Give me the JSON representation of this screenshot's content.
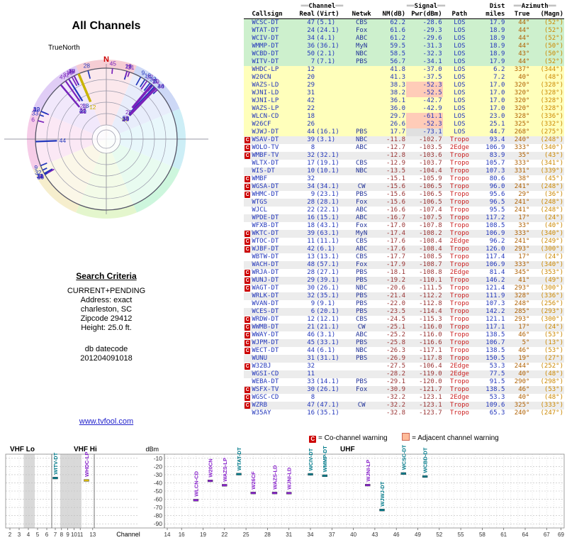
{
  "left": {
    "title": "All Channels",
    "plot_caption": "TrueNorth",
    "north_label": "N",
    "criteria_title": "Search Criteria",
    "criteria_lines": [
      "CURRENT+PENDING",
      "Address: exact",
      "charleston, SC",
      "Zipcode 29412",
      "Height: 25.0 ft."
    ],
    "datecode_lines": [
      "db datecode",
      "201204091018"
    ],
    "link": "www.tvfool.com"
  },
  "table": {
    "deco": "══",
    "groups": {
      "channel": "Channel",
      "signal": "Signal",
      "dist": "Dist",
      "azimuth": "Azimuth"
    },
    "cols": {
      "callsign": "Callsign",
      "real": "Real",
      "virt": "(Virt)",
      "netwk": "Netwk",
      "nm": "NM(dB)",
      "pwr": "Pwr(dBm)",
      "path": "Path",
      "miles": "miles",
      "true": "True",
      "magn": "(Magn)"
    },
    "row_fields": [
      "callsign",
      "real",
      "virt",
      "netwk",
      "nm_db",
      "pwr_dbm",
      "path",
      "miles",
      "true_az",
      "magn_az",
      "class",
      "warning"
    ],
    "rows": [
      [
        "WCSC-DT",
        "47",
        "(5.1)",
        "CBS",
        "62.2",
        "-28.6",
        "LOS",
        "17.9",
        "44°",
        "(52°)",
        "g",
        ""
      ],
      [
        "WTAT-DT",
        "24",
        "(24.1)",
        "Fox",
        "61.6",
        "-29.3",
        "LOS",
        "18.9",
        "44°",
        "(52°)",
        "g",
        ""
      ],
      [
        "WCIV-DT",
        "34",
        "(4.1)",
        "ABC",
        "61.2",
        "-29.6",
        "LOS",
        "18.9",
        "44°",
        "(52°)",
        "g",
        ""
      ],
      [
        "WMMP-DT",
        "36",
        "(36.1)",
        "MyN",
        "59.5",
        "-31.3",
        "LOS",
        "18.9",
        "44°",
        "(50°)",
        "g",
        ""
      ],
      [
        "WCBD-DT",
        "50",
        "(2.1)",
        "NBC",
        "58.5",
        "-32.3",
        "LOS",
        "18.9",
        "43°",
        "(50°)",
        "g",
        ""
      ],
      [
        "WITV-DT",
        "7",
        "(7.1)",
        "PBS",
        "56.7",
        "-34.1",
        "LOS",
        "17.9",
        "44°",
        "(52°)",
        "g",
        ""
      ],
      [
        "WHDC-LP",
        "12",
        "",
        "",
        "41.8",
        "-37.0",
        "LOS",
        "6.2",
        "337°",
        "(344°)",
        "y",
        ""
      ],
      [
        "W20CN",
        "20",
        "",
        "",
        "41.3",
        "-37.5",
        "LOS",
        "7.2",
        "40°",
        "(48°)",
        "y",
        ""
      ],
      [
        "WAZS-LD",
        "29",
        "",
        "",
        "38.3",
        "-52.3",
        "LOS",
        "17.0",
        "320°",
        "(328°)",
        "y",
        ""
      ],
      [
        "WJNI-LD",
        "31",
        "",
        "",
        "38.2",
        "-52.5",
        "LOS",
        "17.0",
        "320°",
        "(328°)",
        "y",
        ""
      ],
      [
        "WJNI-LP",
        "42",
        "",
        "",
        "36.1",
        "-42.7",
        "LOS",
        "17.0",
        "320°",
        "(328°)",
        "y",
        ""
      ],
      [
        "WAZS-LP",
        "22",
        "",
        "",
        "36.0",
        "-42.9",
        "LOS",
        "17.0",
        "320°",
        "(328°)",
        "y",
        ""
      ],
      [
        "WLCN-CD",
        "18",
        "",
        "",
        "29.7",
        "-61.1",
        "LOS",
        "23.0",
        "328°",
        "(336°)",
        "y",
        ""
      ],
      [
        "W26CF",
        "26",
        "",
        "",
        "26.6",
        "-52.3",
        "LOS",
        "25.1",
        "325°",
        "(332°)",
        "y",
        ""
      ],
      [
        "WJWJ-DT",
        "44",
        "(16.1)",
        "PBS",
        "17.7",
        "-73.1",
        "LOS",
        "44.7",
        "268°",
        "(275°)",
        "y",
        ""
      ],
      [
        "WSAV-DT",
        "39",
        "(3.1)",
        "NBC",
        "-11.8",
        "-102.7",
        "Tropo",
        "93.4",
        "240°",
        "(248°)",
        "",
        "C"
      ],
      [
        "WOLO-TV",
        "8",
        "",
        "ABC",
        "-12.7",
        "-103.5",
        "2Edge",
        "106.9",
        "333°",
        "(340°)",
        "",
        "C"
      ],
      [
        "WMBF-TV",
        "32",
        "(32.1)",
        "",
        "-12.8",
        "-103.6",
        "Tropo",
        "83.9",
        "35°",
        "(43°)",
        "",
        "C"
      ],
      [
        "WLTX-DT",
        "17",
        "(19.1)",
        "CBS",
        "-12.9",
        "-103.7",
        "Tropo",
        "105.7",
        "333°",
        "(341°)",
        "",
        ""
      ],
      [
        "WIS-DT",
        "10",
        "(10.1)",
        "NBC",
        "-13.5",
        "-104.4",
        "Tropo",
        "107.3",
        "331°",
        "(339°)",
        "",
        ""
      ],
      [
        "WMBF",
        "32",
        "",
        "",
        "-15.1",
        "-105.9",
        "Tropo",
        "80.6",
        "38°",
        "(45°)",
        "",
        "C"
      ],
      [
        "WGSA-DT",
        "34",
        "(34.1)",
        "CW",
        "-15.6",
        "-106.5",
        "Tropo",
        "96.0",
        "241°",
        "(248°)",
        "",
        "C"
      ],
      [
        "WHMC-DT",
        "9",
        "(23.1)",
        "PBS",
        "-15.6",
        "-106.5",
        "Tropo",
        "95.6",
        "29°",
        "(36°)",
        "",
        "C"
      ],
      [
        "WTGS",
        "28",
        "(28.1)",
        "Fox",
        "-15.6",
        "-106.5",
        "Tropo",
        "96.5",
        "241°",
        "(248°)",
        "",
        ""
      ],
      [
        "WJCL",
        "22",
        "(22.1)",
        "ABC",
        "-16.6",
        "-107.4",
        "Tropo",
        "95.5",
        "241°",
        "(248°)",
        "",
        ""
      ],
      [
        "WPDE-DT",
        "16",
        "(15.1)",
        "ABC",
        "-16.7",
        "-107.5",
        "Tropo",
        "117.2",
        "17°",
        "(24°)",
        "",
        ""
      ],
      [
        "WFXB-DT",
        "18",
        "(43.1)",
        "Fox",
        "-17.0",
        "-107.8",
        "Tropo",
        "108.5",
        "33°",
        "(40°)",
        "",
        ""
      ],
      [
        "WKTC-DT",
        "39",
        "(63.1)",
        "MyN",
        "-17.4",
        "-108.2",
        "Tropo",
        "106.9",
        "333°",
        "(340°)",
        "",
        "C"
      ],
      [
        "WTOC-DT",
        "11",
        "(11.1)",
        "CBS",
        "-17.6",
        "-108.4",
        "2Edge",
        "96.2",
        "241°",
        "(249°)",
        "",
        "C"
      ],
      [
        "WJBF-DT",
        "42",
        "(6.1)",
        "ABC",
        "-17.6",
        "-108.4",
        "Tropo",
        "126.0",
        "293°",
        "(300°)",
        "",
        "C"
      ],
      [
        "WBTW-DT",
        "13",
        "(13.1)",
        "CBS",
        "-17.7",
        "-108.5",
        "Tropo",
        "117.4",
        "17°",
        "(24°)",
        "",
        ""
      ],
      [
        "WACH-DT",
        "48",
        "(57.1)",
        "Fox",
        "-17.9",
        "-108.7",
        "Tropo",
        "106.9",
        "333°",
        "(340°)",
        "",
        ""
      ],
      [
        "WRJA-DT",
        "28",
        "(27.1)",
        "PBS",
        "-18.1",
        "-108.8",
        "2Edge",
        "81.4",
        "345°",
        "(353°)",
        "",
        "C"
      ],
      [
        "WUNJ-DT",
        "29",
        "(39.1)",
        "PBS",
        "-19.2",
        "-110.1",
        "Tropo",
        "146.2",
        "41°",
        "(49°)",
        "",
        "C"
      ],
      [
        "WAGT-DT",
        "30",
        "(26.1)",
        "NBC",
        "-20.6",
        "-111.5",
        "Tropo",
        "121.4",
        "293°",
        "(300°)",
        "",
        "C"
      ],
      [
        "WRLK-DT",
        "32",
        "(35.1)",
        "PBS",
        "-21.4",
        "-112.2",
        "Tropo",
        "111.9",
        "328°",
        "(336°)",
        "",
        ""
      ],
      [
        "WVAN-DT",
        "9",
        "(9.1)",
        "PBS",
        "-22.0",
        "-112.8",
        "Tropo",
        "107.3",
        "248°",
        "(256°)",
        "",
        ""
      ],
      [
        "WCES-DT",
        "6",
        "(20.1)",
        "PBS",
        "-23.5",
        "-114.4",
        "Tropo",
        "142.2",
        "285°",
        "(293°)",
        "",
        ""
      ],
      [
        "WRDW-DT",
        "12",
        "(12.1)",
        "CBS",
        "-24.5",
        "-115.3",
        "Tropo",
        "121.1",
        "293°",
        "(300°)",
        "",
        "C"
      ],
      [
        "WWMB-DT",
        "21",
        "(21.1)",
        "CW",
        "-25.1",
        "-116.0",
        "Tropo",
        "117.1",
        "17°",
        "(24°)",
        "",
        "C"
      ],
      [
        "WWAY-DT",
        "46",
        "(3.1)",
        "ABC",
        "-25.2",
        "-116.0",
        "Tropo",
        "138.5",
        "46°",
        "(53°)",
        "",
        "C"
      ],
      [
        "WJPM-DT",
        "45",
        "(33.1)",
        "PBS",
        "-25.8",
        "-116.6",
        "Tropo",
        "106.7",
        "5°",
        "(13°)",
        "",
        "C"
      ],
      [
        "WECT-DT",
        "44",
        "(6.1)",
        "NBC",
        "-26.3",
        "-117.1",
        "Tropo",
        "138.5",
        "46°",
        "(53°)",
        "",
        "C"
      ],
      [
        "WUNU",
        "31",
        "(31.1)",
        "PBS",
        "-26.9",
        "-117.8",
        "Tropo",
        "150.5",
        "19°",
        "(27°)",
        "",
        ""
      ],
      [
        "W32BJ",
        "32",
        "",
        "",
        "-27.5",
        "-106.4",
        "2Edge",
        "53.3",
        "244°",
        "(252°)",
        "",
        "C"
      ],
      [
        "WGSI-CD",
        "11",
        "",
        "",
        "-28.2",
        "-119.0",
        "2Edge",
        "77.5",
        "40°",
        "(48°)",
        "",
        ""
      ],
      [
        "WEBA-DT",
        "33",
        "(14.1)",
        "PBS",
        "-29.1",
        "-120.0",
        "Tropo",
        "91.5",
        "290°",
        "(298°)",
        "",
        ""
      ],
      [
        "WSFX-TV",
        "30",
        "(26.1)",
        "Fox",
        "-30.9",
        "-121.7",
        "Tropo",
        "138.5",
        "46°",
        "(53°)",
        "",
        "C"
      ],
      [
        "WGSC-CD",
        "8",
        "",
        "",
        "-32.2",
        "-123.1",
        "2Edge",
        "53.3",
        "40°",
        "(48°)",
        "",
        "C"
      ],
      [
        "WZRB",
        "47",
        "(47.1)",
        "CW",
        "-32.2",
        "-123.1",
        "Tropo",
        "109.6",
        "325°",
        "(333°)",
        "",
        "C"
      ],
      [
        "W35AY",
        "16",
        "(35.1)",
        "",
        "-32.8",
        "-123.7",
        "Tropo",
        "65.3",
        "240°",
        "(247°)",
        "",
        ""
      ]
    ]
  },
  "legend": {
    "co_symbol": "C",
    "co_text": "= Co-channel warning",
    "adj_text": "= Adjacent channel warning"
  },
  "polar": {
    "sector_colors": [
      "#f6cdd4",
      "#cdd8f6",
      "#cdeef6",
      "#cdf6dd",
      "#e4f6cd",
      "#f6eecd",
      "#f6cde8",
      "#e0cdf6"
    ]
  },
  "chart": {
    "dbm_label": "dBm",
    "channel_label": "Channel",
    "y_ticks": [
      -10,
      -20,
      -30,
      -40,
      -50,
      -60,
      -70,
      -80,
      -90
    ],
    "bands": [
      {
        "label": "VHF Lo",
        "ch0": 2,
        "ch1": 6,
        "ticks": [
          2,
          3,
          4,
          5,
          6
        ],
        "lx": 14
      },
      {
        "label": "VHF Hi",
        "ch0": 7,
        "ch1": 13,
        "ticks": [
          7,
          8,
          9,
          10,
          11,
          13
        ],
        "lx": 104
      },
      {
        "label": "UHF",
        "ch0": 14,
        "ch1": 69,
        "ticks": [
          14,
          16,
          19,
          22,
          25,
          28,
          31,
          34,
          37,
          40,
          43,
          46,
          49,
          52,
          55,
          58,
          61,
          64,
          67,
          69
        ],
        "lx": 480
      }
    ],
    "stripes": [
      {
        "from": 3.5,
        "to": 4.7
      },
      {
        "from": 7.8,
        "to": 11.2
      }
    ]
  },
  "chart_data": [
    {
      "type": "polar",
      "title": "All Channels azimuth plot",
      "angle_field": "true_az (degrees from true north)",
      "radius_field": "nm_db (stronger = closer to center)",
      "source": "table.rows"
    },
    {
      "type": "scatter",
      "title": "Received power vs channel (LOS stations)",
      "xlabel": "Channel",
      "ylabel": "dBm",
      "ylim": [
        -95,
        -5
      ],
      "points": [
        {
          "callsign": "WCSC-DT",
          "ch": 47,
          "dbm": -28.6,
          "type": "full"
        },
        {
          "callsign": "WTAT-DT",
          "ch": 24,
          "dbm": -29.3,
          "type": "full"
        },
        {
          "callsign": "WCIV-DT",
          "ch": 34,
          "dbm": -29.6,
          "type": "full"
        },
        {
          "callsign": "WMMP-DT",
          "ch": 36,
          "dbm": -31.3,
          "type": "full"
        },
        {
          "callsign": "WCBD-DT",
          "ch": 50,
          "dbm": -32.3,
          "type": "full"
        },
        {
          "callsign": "WITV-DT",
          "ch": 7,
          "dbm": -34.1,
          "type": "full"
        },
        {
          "callsign": "WHDC-LP",
          "ch": 12,
          "dbm": -37.0,
          "type": "lp"
        },
        {
          "callsign": "W20CN",
          "ch": 20,
          "dbm": -37.5,
          "type": "lp"
        },
        {
          "callsign": "WAZS-LD",
          "ch": 29,
          "dbm": -52.3,
          "type": "lp"
        },
        {
          "callsign": "WJNI-LD",
          "ch": 31,
          "dbm": -52.5,
          "type": "lp"
        },
        {
          "callsign": "WJNI-LP",
          "ch": 42,
          "dbm": -42.7,
          "type": "lp"
        },
        {
          "callsign": "WAZS-LP",
          "ch": 22,
          "dbm": -42.9,
          "type": "lp"
        },
        {
          "callsign": "WLCN-CD",
          "ch": 18,
          "dbm": -61.1,
          "type": "lp"
        },
        {
          "callsign": "W26CF",
          "ch": 26,
          "dbm": -52.3,
          "type": "lp"
        },
        {
          "callsign": "WJWJ-DT",
          "ch": 44,
          "dbm": -73.1,
          "type": "full"
        }
      ]
    }
  ],
  "colors": {
    "row_strong": "#cdf0cd",
    "row_medium": "#ffffbb",
    "warn_red": "#cc0000",
    "adjacent_peach": "#ffbb99",
    "link_blue": "#2222cc",
    "spoke_blue": "#2236bb",
    "spoke_purple": "#7a22bb",
    "spoke_yellow": "#c9b400",
    "marker_teal": "#007a8a"
  }
}
